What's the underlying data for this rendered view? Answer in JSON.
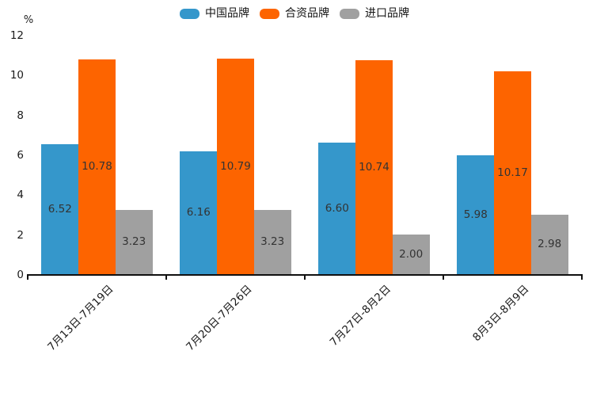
{
  "chart_data": {
    "type": "bar",
    "title": "",
    "ylabel": "%",
    "xlabel": "",
    "categories": [
      "7月13日-7月19日",
      "7月20日-7月26日",
      "7月27日-8月2日",
      "8月3日-8月9日"
    ],
    "series": [
      {
        "key": "china-brand",
        "name": "中国品牌",
        "color": "#3597cb",
        "values": [
          6.52,
          6.16,
          6.6,
          5.98
        ],
        "labels": [
          "6.52",
          "6.16",
          "6.60",
          "5.98"
        ]
      },
      {
        "key": "joint-venture-brand",
        "name": "合资品牌",
        "color": "#fd6400",
        "values": [
          10.78,
          10.79,
          10.74,
          10.17
        ],
        "labels": [
          "10.78",
          "10.79",
          "10.74",
          "10.17"
        ]
      },
      {
        "key": "import-brand",
        "name": "进口品牌",
        "color": "#a0a0a0",
        "values": [
          3.23,
          3.23,
          2.0,
          2.98
        ],
        "labels": [
          "3.23",
          "3.23",
          "2.00",
          "2.98"
        ]
      }
    ],
    "y_ticks": [
      0,
      2,
      4,
      6,
      8,
      10,
      12
    ],
    "ylim": [
      0,
      12
    ],
    "grid": false,
    "legend_position": "top",
    "x_label_rotation": 45,
    "value_labels_position": "inside-center",
    "axis_color": "#101010",
    "label_color": "#333333"
  }
}
